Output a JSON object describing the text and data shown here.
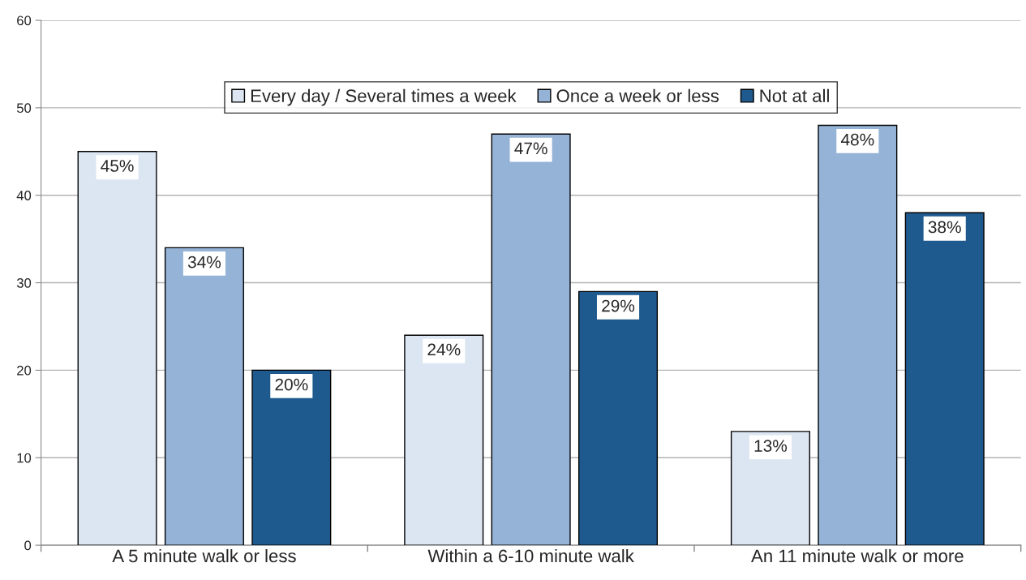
{
  "chart_data": {
    "type": "bar",
    "categories": [
      "A 5 minute walk or less",
      "Within a 6-10 minute walk",
      "An 11 minute walk or more"
    ],
    "series": [
      {
        "name": "Every day / Several times a week",
        "color": "#dce6f2",
        "values": [
          45,
          24,
          13
        ],
        "value_labels": [
          "45%",
          "24%",
          "13%"
        ]
      },
      {
        "name": "Once a week or less",
        "color": "#95b3d7",
        "values": [
          34,
          47,
          48
        ],
        "value_labels": [
          "34%",
          "47%",
          "48%"
        ]
      },
      {
        "name": "Not at all",
        "color": "#1f5a8e",
        "values": [
          20,
          29,
          38
        ],
        "value_labels": [
          "20%",
          "29%",
          "38%"
        ]
      }
    ],
    "ylim": [
      0,
      60
    ],
    "yticks": [
      0,
      10,
      20,
      30,
      40,
      50,
      60
    ],
    "grid": "y",
    "legend": "top"
  }
}
